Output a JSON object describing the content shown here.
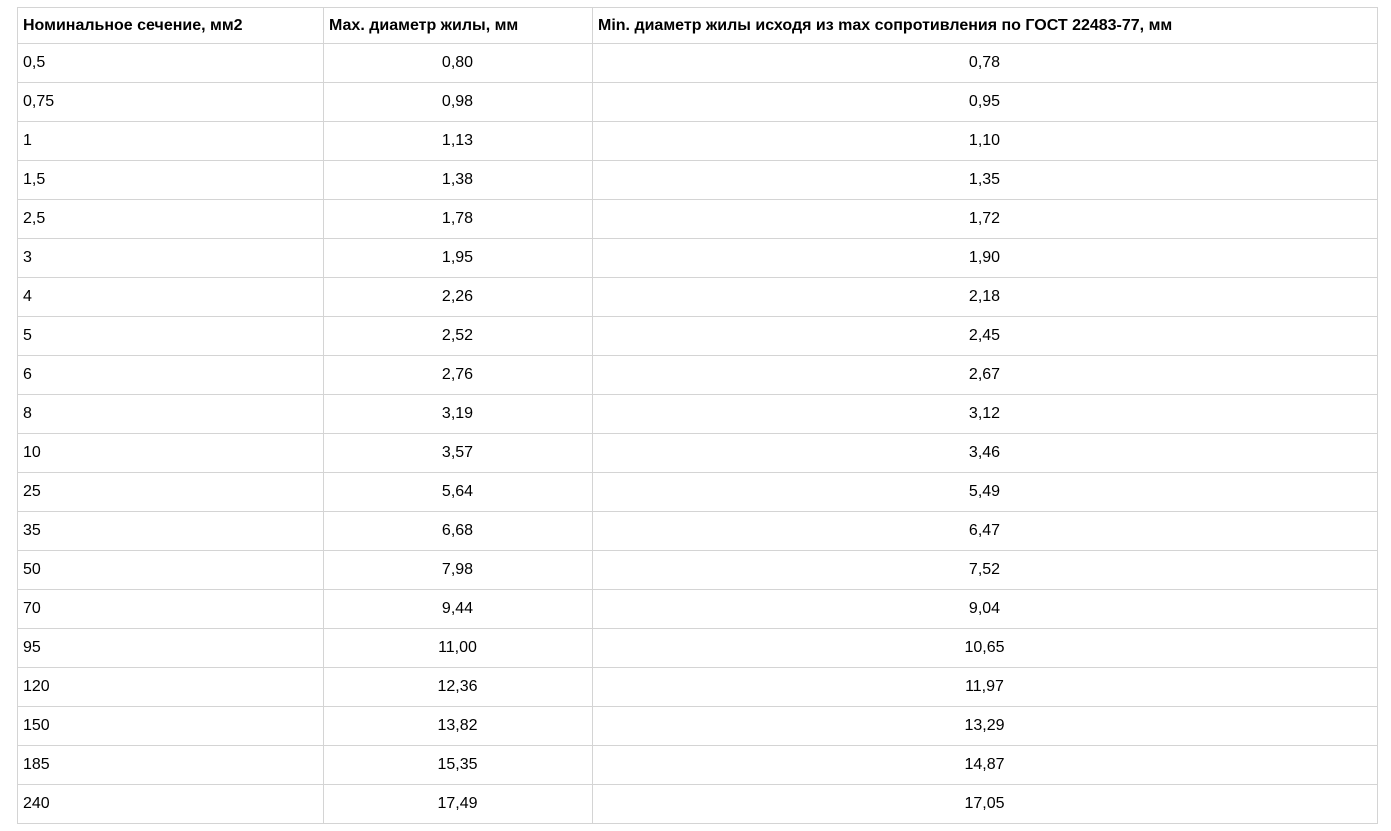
{
  "colors": {
    "border": "#d4d4d4",
    "text": "#000000",
    "background": "#ffffff"
  },
  "table": {
    "columns": [
      {
        "label": "Номинальное сечение, мм2",
        "align": "left"
      },
      {
        "label": "Мах. диаметр жилы, мм",
        "align": "center"
      },
      {
        "label": "Min. диаметр жилы исходя из max сопротивления по ГОСТ 22483-77, мм",
        "align": "center"
      }
    ],
    "rows": [
      [
        "0,5",
        "0,80",
        "0,78"
      ],
      [
        "0,75",
        "0,98",
        "0,95"
      ],
      [
        "1",
        "1,13",
        "1,10"
      ],
      [
        "1,5",
        "1,38",
        "1,35"
      ],
      [
        "2,5",
        "1,78",
        "1,72"
      ],
      [
        "3",
        "1,95",
        "1,90"
      ],
      [
        "4",
        "2,26",
        "2,18"
      ],
      [
        "5",
        "2,52",
        "2,45"
      ],
      [
        "6",
        "2,76",
        "2,67"
      ],
      [
        "8",
        "3,19",
        "3,12"
      ],
      [
        "10",
        "3,57",
        "3,46"
      ],
      [
        "25",
        "5,64",
        "5,49"
      ],
      [
        "35",
        "6,68",
        "6,47"
      ],
      [
        "50",
        "7,98",
        "7,52"
      ],
      [
        "70",
        "9,44",
        "9,04"
      ],
      [
        "95",
        "11,00",
        "10,65"
      ],
      [
        "120",
        "12,36",
        "11,97"
      ],
      [
        "150",
        "13,82",
        "13,29"
      ],
      [
        "185",
        "15,35",
        "14,87"
      ],
      [
        "240",
        "17,49",
        "17,05"
      ]
    ]
  }
}
